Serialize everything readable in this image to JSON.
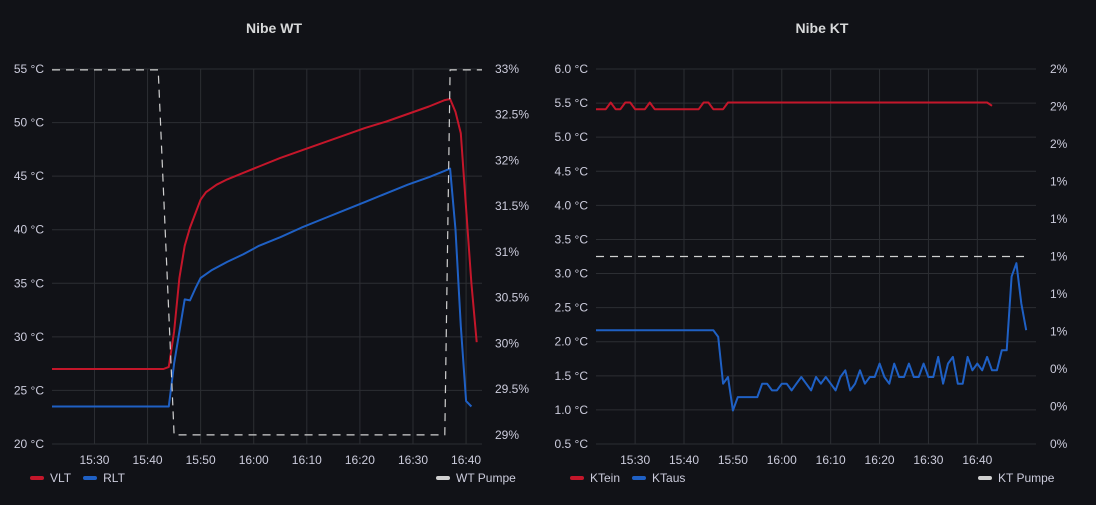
{
  "colors": {
    "background": "#111217",
    "grid": "#2c2e33",
    "red": "#c4162a",
    "blue": "#1f60c4",
    "dashed": "#d0d0d0",
    "tick": "#ccccdc"
  },
  "chart_data": [
    {
      "type": "line",
      "title": "Nibe WT",
      "x": [
        "15:30",
        "15:40",
        "15:50",
        "16:00",
        "16:10",
        "16:20",
        "16:30",
        "16:40"
      ],
      "x_minutes_range": [
        922,
        1003
      ],
      "ylim_left": [
        20,
        55
      ],
      "left_ticks": [
        "55 °C",
        "50 °C",
        "45 °C",
        "40 °C",
        "35 °C",
        "30 °C",
        "25 °C",
        "20 °C"
      ],
      "ylim_right": [
        28.9,
        33
      ],
      "right_ticks": [
        "33%",
        "32.5%",
        "32%",
        "31.5%",
        "31%",
        "30.5%",
        "30%",
        "29.5%",
        "29%"
      ],
      "legend": [
        "VLT",
        "RLT"
      ],
      "legend_right": "WT Pumpe",
      "series": [
        {
          "name": "VLT",
          "axis": "left",
          "color": "red",
          "points": [
            [
              922,
              27.0
            ],
            [
              943,
              27.0
            ],
            [
              944,
              27.2
            ],
            [
              945,
              30.5
            ],
            [
              946,
              35.5
            ],
            [
              947,
              38.5
            ],
            [
              948,
              40.2
            ],
            [
              949,
              41.5
            ],
            [
              950,
              42.8
            ],
            [
              951,
              43.5
            ],
            [
              953,
              44.2
            ],
            [
              955,
              44.7
            ],
            [
              958,
              45.3
            ],
            [
              961,
              45.9
            ],
            [
              965,
              46.7
            ],
            [
              969,
              47.4
            ],
            [
              973,
              48.1
            ],
            [
              977,
              48.8
            ],
            [
              981,
              49.5
            ],
            [
              985,
              50.1
            ],
            [
              989,
              50.8
            ],
            [
              993,
              51.5
            ],
            [
              996,
              52.1
            ],
            [
              997,
              52.2
            ],
            [
              998,
              51.0
            ],
            [
              999,
              49.0
            ],
            [
              1000,
              42.0
            ],
            [
              1001,
              35.0
            ],
            [
              1002,
              29.5
            ]
          ]
        },
        {
          "name": "RLT",
          "axis": "left",
          "color": "blue",
          "points": [
            [
              922,
              23.5
            ],
            [
              944,
              23.5
            ],
            [
              945,
              27.5
            ],
            [
              946,
              30.5
            ],
            [
              947,
              33.5
            ],
            [
              948,
              33.4
            ],
            [
              949,
              34.5
            ],
            [
              950,
              35.5
            ],
            [
              952,
              36.2
            ],
            [
              955,
              37.0
            ],
            [
              958,
              37.7
            ],
            [
              961,
              38.5
            ],
            [
              965,
              39.3
            ],
            [
              969,
              40.2
            ],
            [
              973,
              41.0
            ],
            [
              977,
              41.8
            ],
            [
              981,
              42.6
            ],
            [
              985,
              43.4
            ],
            [
              989,
              44.2
            ],
            [
              993,
              44.9
            ],
            [
              996,
              45.5
            ],
            [
              997,
              45.7
            ],
            [
              998,
              40.0
            ],
            [
              999,
              31.0
            ],
            [
              1000,
              24.0
            ],
            [
              1001,
              23.5
            ]
          ]
        },
        {
          "name": "WT Pumpe",
          "axis": "right",
          "color": "dashed",
          "dashed": true,
          "points": [
            [
              922,
              32.99
            ],
            [
              942,
              32.99
            ],
            [
              945,
              29.0
            ],
            [
              996,
              29.0
            ],
            [
              997,
              32.99
            ],
            [
              1003,
              32.99
            ]
          ]
        }
      ]
    },
    {
      "type": "line",
      "title": "Nibe KT",
      "x": [
        "15:30",
        "15:40",
        "15:50",
        "16:00",
        "16:10",
        "16:20",
        "16:30",
        "16:40"
      ],
      "x_minutes_range": [
        922,
        1003
      ],
      "ylim_left": [
        0.4,
        6.0
      ],
      "left_ticks": [
        "6.0 °C",
        "5.5 °C",
        "5.0 °C",
        "4.5 °C",
        "4.0 °C",
        "3.5 °C",
        "3.0 °C",
        "2.5 °C",
        "2.0 °C",
        "1.5 °C",
        "1.0 °C",
        "0.5 °C"
      ],
      "ylim_right": [
        0,
        10
      ],
      "right_ticks": [
        "2%",
        "2%",
        "2%",
        "1%",
        "1%",
        "1%",
        "1%",
        "1%",
        "0%",
        "0%",
        "0%"
      ],
      "legend": [
        "KTein",
        "KTaus"
      ],
      "legend_right": "KT Pumpe",
      "series": [
        {
          "name": "KTein",
          "axis": "left",
          "color": "red",
          "points": [
            [
              922,
              5.4
            ],
            [
              924,
              5.4
            ],
            [
              925,
              5.5
            ],
            [
              926,
              5.4
            ],
            [
              927,
              5.4
            ],
            [
              928,
              5.5
            ],
            [
              929,
              5.5
            ],
            [
              930,
              5.4
            ],
            [
              932,
              5.4
            ],
            [
              933,
              5.5
            ],
            [
              934,
              5.4
            ],
            [
              943,
              5.4
            ],
            [
              944,
              5.5
            ],
            [
              945,
              5.5
            ],
            [
              946,
              5.4
            ],
            [
              948,
              5.4
            ],
            [
              949,
              5.5
            ],
            [
              1002,
              5.5
            ],
            [
              1003,
              5.45
            ]
          ]
        },
        {
          "name": "KTaus",
          "axis": "left",
          "color": "blue",
          "points": [
            [
              922,
              2.1
            ],
            [
              946,
              2.1
            ],
            [
              947,
              2.0
            ],
            [
              948,
              1.3
            ],
            [
              949,
              1.4
            ],
            [
              950,
              0.9
            ],
            [
              951,
              1.1
            ],
            [
              955,
              1.1
            ],
            [
              956,
              1.3
            ],
            [
              957,
              1.3
            ],
            [
              958,
              1.2
            ],
            [
              959,
              1.2
            ],
            [
              960,
              1.3
            ],
            [
              961,
              1.3
            ],
            [
              962,
              1.2
            ],
            [
              963,
              1.3
            ],
            [
              964,
              1.4
            ],
            [
              965,
              1.3
            ],
            [
              966,
              1.2
            ],
            [
              967,
              1.4
            ],
            [
              968,
              1.3
            ],
            [
              969,
              1.4
            ],
            [
              970,
              1.3
            ],
            [
              971,
              1.2
            ],
            [
              972,
              1.4
            ],
            [
              973,
              1.5
            ],
            [
              974,
              1.2
            ],
            [
              975,
              1.3
            ],
            [
              976,
              1.5
            ],
            [
              977,
              1.3
            ],
            [
              978,
              1.4
            ],
            [
              979,
              1.4
            ],
            [
              980,
              1.6
            ],
            [
              981,
              1.4
            ],
            [
              982,
              1.3
            ],
            [
              983,
              1.6
            ],
            [
              984,
              1.4
            ],
            [
              985,
              1.4
            ],
            [
              986,
              1.6
            ],
            [
              987,
              1.4
            ],
            [
              988,
              1.4
            ],
            [
              989,
              1.6
            ],
            [
              990,
              1.4
            ],
            [
              991,
              1.4
            ],
            [
              992,
              1.7
            ],
            [
              993,
              1.3
            ],
            [
              994,
              1.6
            ],
            [
              995,
              1.7
            ],
            [
              996,
              1.3
            ],
            [
              997,
              1.3
            ],
            [
              998,
              1.7
            ],
            [
              999,
              1.5
            ],
            [
              1000,
              1.6
            ],
            [
              1001,
              1.5
            ],
            [
              1002,
              1.7
            ],
            [
              1003,
              1.5
            ],
            [
              1004,
              1.5
            ],
            [
              1005,
              1.8
            ],
            [
              1006,
              1.8
            ],
            [
              1007,
              2.9
            ],
            [
              1008,
              3.1
            ],
            [
              1009,
              2.5
            ],
            [
              1010,
              2.1
            ]
          ]
        },
        {
          "name": "KT Pumpe",
          "axis": "right",
          "color": "dashed",
          "dashed": true,
          "points": [
            [
              922,
              5
            ],
            [
              1010,
              5
            ]
          ]
        }
      ]
    }
  ]
}
